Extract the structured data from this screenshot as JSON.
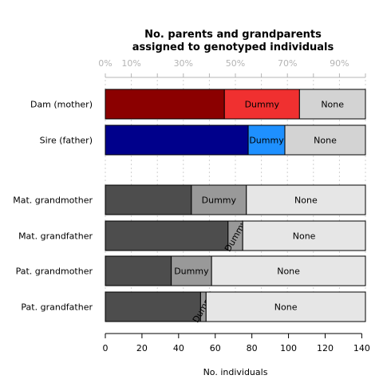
{
  "chart_data": {
    "type": "bar",
    "orientation": "horizontal",
    "stacked": true,
    "title_lines": [
      "No. parents and grandparents",
      "assigned to genotyped individuals"
    ],
    "xlabel": "No. individuals",
    "ylabel": "",
    "xlim": [
      0,
      142
    ],
    "x_ticks": [
      0,
      20,
      40,
      60,
      80,
      100,
      120,
      140
    ],
    "top_axis": {
      "scale_max": 142,
      "tick_labels": [
        "0%",
        "10%",
        "30%",
        "50%",
        "70%",
        "90%"
      ],
      "tick_values": [
        0,
        10,
        30,
        50,
        70,
        90
      ],
      "minor_ticks_every": 10
    },
    "grid_vertical": true,
    "legend": "none",
    "categories": [
      "Dam (mother)",
      "Sire (father)",
      "Mat. grandmother",
      "Mat. grandfather",
      "Pat. grandmother",
      "Pat. grandfather"
    ],
    "gap_after_index": 1,
    "segments": [
      {
        "label": "",
        "values": [
          65,
          78,
          47,
          67,
          36,
          52
        ]
      },
      {
        "label": "Dummy",
        "values": [
          41,
          20,
          30,
          8,
          22,
          3
        ]
      },
      {
        "label": "None",
        "values": [
          36,
          44,
          65,
          67,
          84,
          87
        ]
      }
    ],
    "segment_colors": [
      [
        "#8b0000",
        "#f03030",
        "#d3d3d3"
      ],
      [
        "#00008b",
        "#1e90ff",
        "#d3d3d3"
      ],
      [
        "#4d4d4d",
        "#999999",
        "#e6e6e6"
      ],
      [
        "#4d4d4d",
        "#999999",
        "#e6e6e6"
      ],
      [
        "#4d4d4d",
        "#999999",
        "#e6e6e6"
      ],
      [
        "#4d4d4d",
        "#999999",
        "#e6e6e6"
      ]
    ]
  }
}
